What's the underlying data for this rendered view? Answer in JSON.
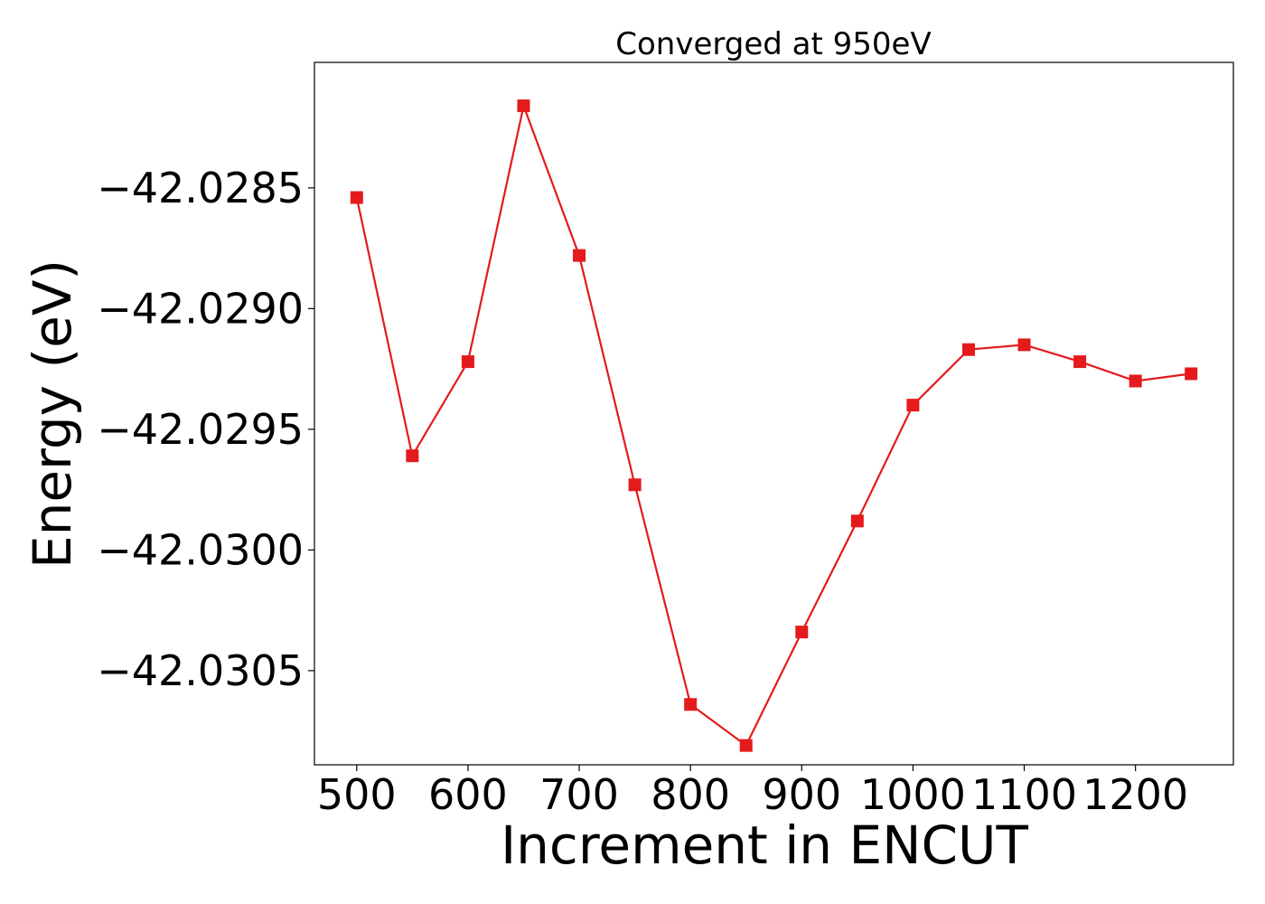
{
  "chart_data": {
    "type": "line",
    "title": "Converged at 950eV",
    "xlabel": "Increment in ENCUT",
    "ylabel": "Energy (eV)",
    "xlim": [
      462,
      1288
    ],
    "ylim": [
      -42.03089,
      -42.02798
    ],
    "x_ticks": [
      500,
      600,
      700,
      800,
      900,
      1000,
      1100,
      1200
    ],
    "x_tick_labels": [
      "500",
      "600",
      "700",
      "800",
      "900",
      "1000",
      "1100",
      "1200"
    ],
    "y_ticks": [
      -42.0285,
      -42.029,
      -42.0295,
      -42.03,
      -42.0305
    ],
    "y_tick_labels": [
      "−42.0285",
      "−42.0290",
      "−42.0295",
      "−42.0300",
      "−42.0305"
    ],
    "grid": false,
    "series": [
      {
        "color": "#e41a1c",
        "marker": "square",
        "x": [
          500,
          550,
          600,
          650,
          700,
          750,
          800,
          850,
          900,
          950,
          1000,
          1050,
          1100,
          1150,
          1200,
          1250
        ],
        "y": [
          -42.02854,
          -42.02961,
          -42.02922,
          -42.02816,
          -42.02878,
          -42.02973,
          -42.03064,
          -42.03081,
          -42.03034,
          -42.02988,
          -42.0294,
          -42.02917,
          -42.02915,
          -42.02922,
          -42.0293,
          -42.02927
        ]
      }
    ]
  }
}
